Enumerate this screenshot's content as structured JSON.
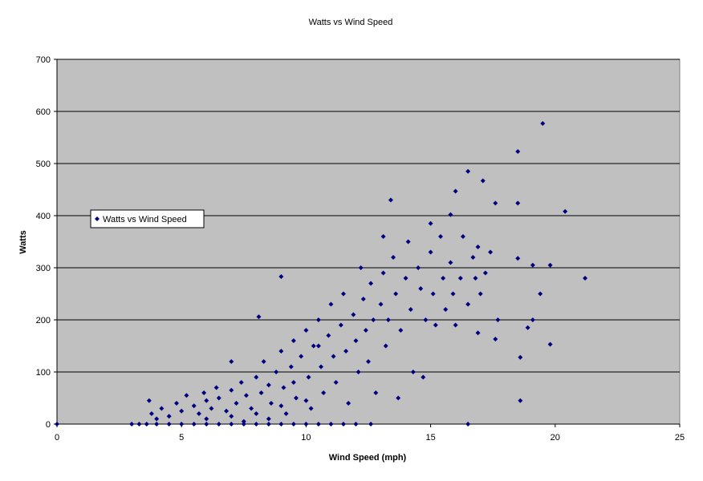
{
  "chart_data": {
    "type": "scatter",
    "title": "Watts vs Wind Speed",
    "x_label": "Wind Speed (mph)",
    "y_label": "Watts",
    "xlim": [
      0,
      25
    ],
    "xticks": [
      0,
      5,
      10,
      15,
      20,
      25
    ],
    "ylim": [
      0,
      700
    ],
    "yticks": [
      0,
      100,
      200,
      300,
      400,
      500,
      600,
      700
    ],
    "grid": true,
    "x": [
      0,
      3,
      3.3,
      3.6,
      4,
      4.5,
      5,
      5.5,
      6,
      6.5,
      7,
      7.5,
      8,
      8.5,
      9,
      9.5,
      10,
      10.5,
      11,
      11.5,
      12,
      12.6,
      3.7,
      3.8,
      4,
      4.2,
      4.5,
      4.8,
      5,
      5.2,
      5.5,
      5.7,
      5.9,
      6,
      6.2,
      6.4,
      6.5,
      6.8,
      7,
      7.2,
      7.4,
      7.6,
      7.8,
      8,
      8.2,
      8.3,
      8.5,
      8.6,
      8.8,
      9,
      9.1,
      9.2,
      9.4,
      9.5,
      9.6,
      9.8,
      10,
      10.1,
      10.2,
      10.3,
      10.5,
      10.6,
      10.7,
      10.9,
      11,
      11.1,
      11.2,
      11.4,
      11.5,
      11.6,
      11.7,
      11.9,
      12,
      12.1,
      12.3,
      12.4,
      12.5,
      12.6,
      12.7,
      12.8,
      13,
      13.1,
      13.2,
      13.3,
      13.5,
      13.6,
      13.7,
      13.8,
      14,
      14.1,
      14.2,
      14.3,
      14.5,
      14.6,
      14.7,
      14.8,
      15,
      15.1,
      15.2,
      15.4,
      15.5,
      15.6,
      15.8,
      15.9,
      16,
      16.2,
      16.3,
      16.5,
      16.7,
      16.8,
      16.9,
      17,
      17.2,
      17.4,
      6,
      7,
      8,
      9,
      10,
      7.5,
      8.5,
      9.5,
      9,
      8.1,
      7,
      13.4,
      16.5,
      19.5,
      18.5,
      20.4,
      21.2,
      19.8,
      19.8,
      18.6,
      16.5,
      17.1,
      17.6,
      18.5,
      16,
      15.8,
      19.1,
      19.4,
      18.9,
      19.1,
      17.7,
      17.6,
      16.9,
      18.6,
      18.5,
      12.2,
      13.1,
      15,
      10.5
    ],
    "series": [
      {
        "name": "Watts vs Wind Speed",
        "color": "#000080",
        "values": [
          0,
          0,
          0,
          0,
          0,
          0,
          0,
          0,
          0,
          0,
          0,
          0,
          0,
          0,
          0,
          0,
          0,
          0,
          0,
          0,
          0,
          0,
          45,
          20,
          10,
          30,
          15,
          40,
          25,
          55,
          35,
          20,
          60,
          45,
          30,
          70,
          50,
          25,
          65,
          40,
          80,
          55,
          30,
          90,
          60,
          120,
          75,
          40,
          100,
          140,
          70,
          20,
          110,
          160,
          50,
          130,
          180,
          90,
          30,
          150,
          200,
          110,
          60,
          170,
          230,
          130,
          80,
          190,
          250,
          140,
          40,
          210,
          160,
          100,
          240,
          180,
          120,
          270,
          200,
          60,
          230,
          290,
          150,
          200,
          320,
          250,
          50,
          180,
          280,
          350,
          220,
          100,
          300,
          260,
          90,
          200,
          330,
          250,
          190,
          360,
          280,
          220,
          310,
          250,
          190,
          280,
          360,
          230,
          320,
          280,
          340,
          250,
          290,
          330,
          10,
          15,
          20,
          35,
          45,
          5,
          10,
          80,
          283,
          206,
          120,
          430,
          485,
          577,
          523,
          408,
          280,
          305,
          153,
          45,
          0,
          467,
          424,
          424,
          447,
          402,
          305,
          250,
          185,
          200,
          200,
          163,
          175,
          128,
          318,
          300,
          360,
          385,
          150
        ]
      }
    ]
  }
}
